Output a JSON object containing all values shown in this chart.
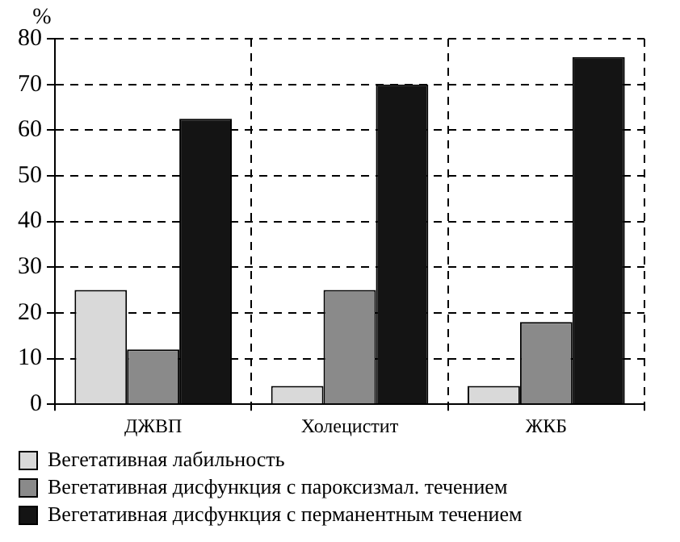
{
  "chart_data": {
    "type": "bar",
    "ylabel": "%",
    "categories": [
      "ДЖВП",
      "Холецистит",
      "ЖКБ"
    ],
    "series": [
      {
        "name": "Вегетативная лабильность",
        "color": "#d9d9d9",
        "values": [
          25,
          4,
          4
        ]
      },
      {
        "name": "Вегетативная дисфункция с пароксизмал. течением",
        "color": "#8a8a8a",
        "values": [
          12,
          25,
          18
        ]
      },
      {
        "name": "Вегетативная дисфункция с перманентным течением",
        "color": "#141414",
        "values": [
          62.5,
          70,
          76
        ]
      }
    ],
    "ylim": [
      0,
      80
    ],
    "yticks": [
      0,
      10,
      20,
      30,
      40,
      50,
      60,
      70,
      80
    ],
    "grid": true,
    "legend": "bottom"
  }
}
